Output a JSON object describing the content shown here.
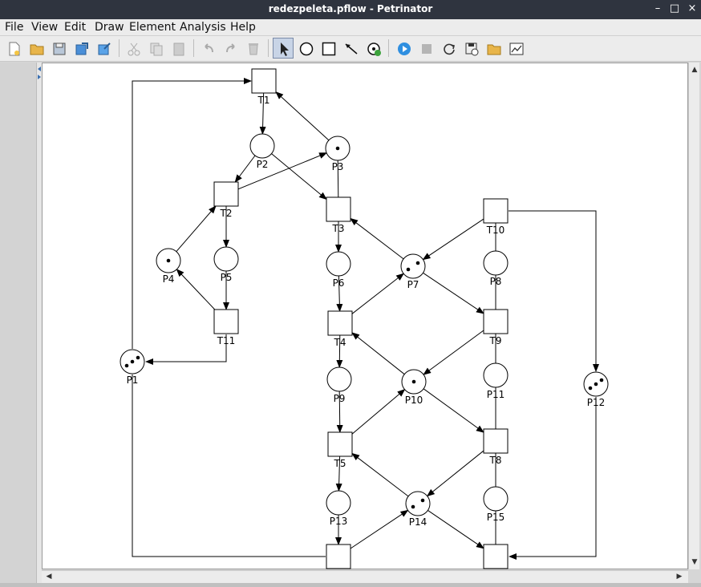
{
  "window": {
    "title": "redezpeleta.pflow - Petrinator",
    "minimize_glyph": "–",
    "maximize_glyph": "□",
    "close_glyph": "×"
  },
  "menu": {
    "file": "File",
    "view": "View",
    "edit": "Edit",
    "draw": "Draw",
    "element": "Element",
    "analysis": "Analysis",
    "help": "Help"
  },
  "toolbar": {
    "icons": [
      "new-file-icon",
      "open-folder-icon",
      "save-icon",
      "export-icon",
      "import-icon",
      "cut-icon",
      "copy-icon",
      "paste-icon",
      "undo-icon",
      "redo-icon",
      "delete-icon",
      "select-arrow-icon",
      "place-circle-icon",
      "transition-square-icon",
      "arc-icon",
      "token-icon",
      "play-icon",
      "stop-icon",
      "refresh-icon",
      "save-disk-icon",
      "open-folder-icon",
      "chart-icon"
    ]
  },
  "net": {
    "places": [
      {
        "id": "P1",
        "label": "P1",
        "tokens": 3
      },
      {
        "id": "P2",
        "label": "P2",
        "tokens": 0
      },
      {
        "id": "P3",
        "label": "P3",
        "tokens": 1
      },
      {
        "id": "P4",
        "label": "P4",
        "tokens": 1
      },
      {
        "id": "P5",
        "label": "P5",
        "tokens": 0
      },
      {
        "id": "P6",
        "label": "P6",
        "tokens": 0
      },
      {
        "id": "P7",
        "label": "P7",
        "tokens": 2
      },
      {
        "id": "P8",
        "label": "P8",
        "tokens": 0
      },
      {
        "id": "P9",
        "label": "P9",
        "tokens": 0
      },
      {
        "id": "P10",
        "label": "P10",
        "tokens": 1
      },
      {
        "id": "P11",
        "label": "P11",
        "tokens": 0
      },
      {
        "id": "P12",
        "label": "P12",
        "tokens": 3
      },
      {
        "id": "P13",
        "label": "P13",
        "tokens": 0
      },
      {
        "id": "P14",
        "label": "P14",
        "tokens": 2
      },
      {
        "id": "P15",
        "label": "P15",
        "tokens": 0
      }
    ],
    "transitions": [
      {
        "id": "T1",
        "label": "T1"
      },
      {
        "id": "T2",
        "label": "T2"
      },
      {
        "id": "T3",
        "label": "T3"
      },
      {
        "id": "T4",
        "label": "T4"
      },
      {
        "id": "T5",
        "label": "T5"
      },
      {
        "id": "T6",
        "label": ""
      },
      {
        "id": "T7",
        "label": ""
      },
      {
        "id": "T8",
        "label": "T8"
      },
      {
        "id": "T9",
        "label": "T9"
      },
      {
        "id": "T10",
        "label": "T10"
      },
      {
        "id": "T11",
        "label": "T11"
      }
    ]
  }
}
